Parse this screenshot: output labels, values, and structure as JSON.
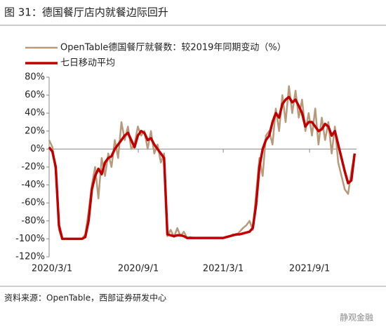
{
  "chart_data": {
    "type": "line",
    "title": "图 31：德国餐厅店内就餐边际回升",
    "source": "资料来源：OpenTable，西部证券研发中心",
    "watermark": "静观金融",
    "x": [
      "2020/2/24",
      "2020/3/2",
      "2020/3/9",
      "2020/3/16",
      "2020/3/23",
      "2020/3/30",
      "2020/4/6",
      "2020/4/13",
      "2020/4/20",
      "2020/4/27",
      "2020/5/4",
      "2020/5/11",
      "2020/5/18",
      "2020/5/25",
      "2020/6/1",
      "2020/6/8",
      "2020/6/15",
      "2020/6/22",
      "2020/6/29",
      "2020/7/6",
      "2020/7/13",
      "2020/7/20",
      "2020/7/27",
      "2020/8/3",
      "2020/8/10",
      "2020/8/17",
      "2020/8/24",
      "2020/8/31",
      "2020/9/7",
      "2020/9/14",
      "2020/9/21",
      "2020/9/28",
      "2020/10/5",
      "2020/10/12",
      "2020/10/19",
      "2020/10/26",
      "2020/11/2",
      "2020/11/9",
      "2020/11/16",
      "2020/11/23",
      "2020/11/30",
      "2020/12/7",
      "2020/12/14",
      "2020/12/21",
      "2020/12/28",
      "2021/1/4",
      "2021/1/11",
      "2021/1/18",
      "2021/1/25",
      "2021/2/1",
      "2021/2/8",
      "2021/2/15",
      "2021/2/22",
      "2021/3/1",
      "2021/3/8",
      "2021/3/15",
      "2021/3/22",
      "2021/3/29",
      "2021/4/5",
      "2021/4/12",
      "2021/4/19",
      "2021/4/26",
      "2021/5/3",
      "2021/5/10",
      "2021/5/17",
      "2021/5/24",
      "2021/5/31",
      "2021/6/7",
      "2021/6/14",
      "2021/6/21",
      "2021/6/28",
      "2021/7/5",
      "2021/7/12",
      "2021/7/19",
      "2021/7/26",
      "2021/8/2",
      "2021/8/9",
      "2021/8/16",
      "2021/8/23",
      "2021/8/30",
      "2021/9/6",
      "2021/9/13",
      "2021/9/20",
      "2021/9/27",
      "2021/10/4",
      "2021/10/11",
      "2021/10/18",
      "2021/10/25",
      "2021/11/1",
      "2021/11/8",
      "2021/11/15",
      "2021/11/22",
      "2021/11/29",
      "2021/12/6"
    ],
    "series": [
      {
        "name": "OpenTable德国餐厅就餐数：较2019年同期变动（%）",
        "color": "#b8997a",
        "width": 2.5,
        "values": [
          10,
          2,
          -25,
          -90,
          -100,
          -100,
          -100,
          -100,
          -100,
          -100,
          -100,
          -95,
          -70,
          -40,
          -20,
          -55,
          -10,
          -30,
          -5,
          -20,
          10,
          -10,
          30,
          10,
          25,
          0,
          5,
          25,
          15,
          20,
          0,
          20,
          -5,
          5,
          -15,
          -5,
          -97,
          -90,
          -98,
          -88,
          -97,
          -92,
          -99,
          -98,
          -99,
          -99,
          -99,
          -99,
          -99,
          -99,
          -99,
          -99,
          -99,
          -99,
          -98,
          -97,
          -95,
          -96,
          -92,
          -88,
          -85,
          -80,
          -90,
          -50,
          -10,
          -30,
          15,
          20,
          5,
          45,
          20,
          60,
          30,
          70,
          40,
          65,
          35,
          55,
          20,
          40,
          15,
          45,
          5,
          35,
          10,
          30,
          -5,
          25,
          -15,
          -30,
          -45,
          -50,
          -25,
          -5
        ]
      },
      {
        "name": "七日移动平均",
        "color": "#c00000",
        "width": 3.5,
        "values": [
          2,
          -3,
          -20,
          -85,
          -100,
          -100,
          -100,
          -100,
          -100,
          -100,
          -100,
          -98,
          -80,
          -45,
          -30,
          -22,
          -28,
          -15,
          -10,
          -8,
          0,
          5,
          10,
          15,
          18,
          10,
          2,
          15,
          20,
          18,
          10,
          12,
          5,
          0,
          -5,
          -10,
          -95,
          -96,
          -97,
          -96,
          -96,
          -97,
          -99,
          -99,
          -99,
          -99,
          -99,
          -99,
          -99,
          -99,
          -99,
          -99,
          -99,
          -99,
          -98,
          -97,
          -96,
          -95,
          -95,
          -94,
          -93,
          -92,
          -88,
          -62,
          -20,
          0,
          10,
          15,
          30,
          40,
          35,
          50,
          55,
          58,
          52,
          55,
          48,
          40,
          25,
          30,
          30,
          25,
          20,
          22,
          28,
          25,
          15,
          20,
          5,
          -10,
          -25,
          -38,
          -35,
          -5
        ]
      }
    ],
    "xlim": [
      "2020/2/24",
      "2021/12/10"
    ],
    "xticks": [
      "2020/3/1",
      "2020/9/1",
      "2021/3/1",
      "2021/9/1"
    ],
    "ylim": [
      -120,
      80
    ],
    "yticks": [
      {
        "value": -120,
        "label": "-120%"
      },
      {
        "value": -100,
        "label": "-100%"
      },
      {
        "value": -80,
        "label": "-80%"
      },
      {
        "value": -60,
        "label": "-60%"
      },
      {
        "value": -40,
        "label": "-40%"
      },
      {
        "value": -20,
        "label": "-20%"
      },
      {
        "value": 0,
        "label": "0%"
      },
      {
        "value": 20,
        "label": "20%"
      },
      {
        "value": 40,
        "label": "40%"
      },
      {
        "value": 60,
        "label": "60%"
      },
      {
        "value": 80,
        "label": "80%"
      }
    ]
  }
}
